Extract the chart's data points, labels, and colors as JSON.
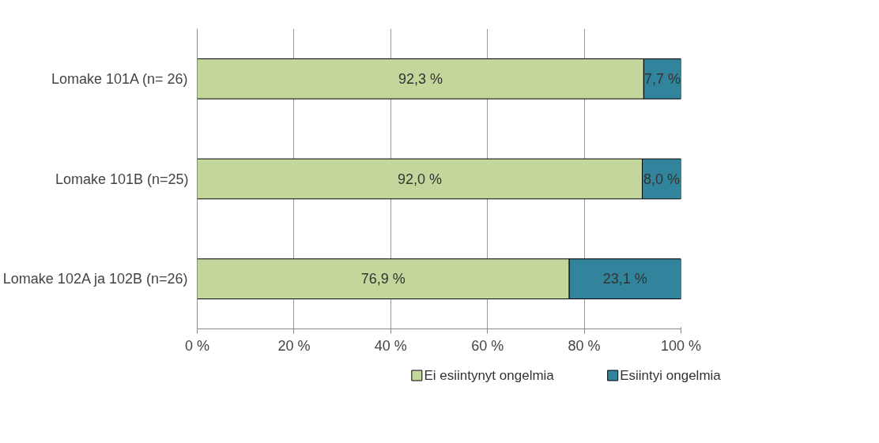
{
  "chart_data": {
    "type": "bar",
    "orientation": "horizontal",
    "stacked": true,
    "categories": [
      "Lomake 101A (n= 26)",
      "Lomake 101B (n=25)",
      "Lomake 102A ja 102B (n=26)"
    ],
    "series": [
      {
        "name": "Ei esiintynyt ongelmia",
        "color": "#c3d69b",
        "values": [
          92.3,
          92.0,
          76.9
        ],
        "value_labels": [
          "92,3 %",
          "92,0 %",
          "76,9 %"
        ]
      },
      {
        "name": "Esiintyi ongelmia",
        "color": "#31849b",
        "values": [
          7.7,
          8.0,
          23.1
        ],
        "value_labels": [
          "7,7 %",
          "8,0 %",
          "23,1 %"
        ]
      }
    ],
    "xlim": [
      0,
      100
    ],
    "xticks": [
      {
        "value": 0,
        "label": "0 %"
      },
      {
        "value": 20,
        "label": "20 %"
      },
      {
        "value": 40,
        "label": "40 %"
      },
      {
        "value": 60,
        "label": "60 %"
      },
      {
        "value": 80,
        "label": "80 %"
      },
      {
        "value": 100,
        "label": "100 %"
      }
    ],
    "grid": "x",
    "legend": "bottom"
  }
}
